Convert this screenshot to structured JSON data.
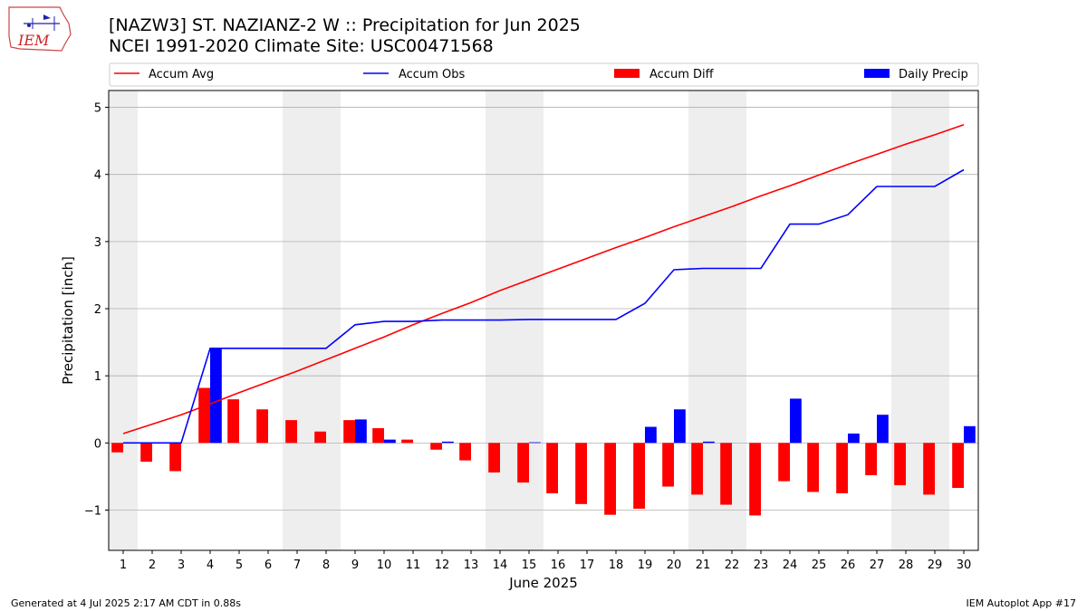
{
  "header": {
    "logo_text": "IEM",
    "title_line1": "[NAZW3] ST. NAZIANZ-2 W :: Precipitation for Jun 2025",
    "title_line2": "NCEI 1991-2020 Climate Site: USC00471568"
  },
  "footer": {
    "generated": "Generated at 4 Jul 2025 2:17 AM CDT in 0.88s",
    "app": "IEM Autoplot App #17"
  },
  "colors": {
    "accum_avg": "#ff0000",
    "accum_obs": "#0000ff",
    "accum_diff": "#ff0000",
    "daily_precip": "#0000ff",
    "weekend_shade": "#eeeeee",
    "grid": "#b0b0b0"
  },
  "chart_data": {
    "type": "bar",
    "xlabel": "June 2025",
    "ylabel": "Precipitation [inch]",
    "ylim": [
      -1.6,
      5.25
    ],
    "xlim": [
      0.5,
      30.5
    ],
    "yticks": [
      -1,
      0,
      1,
      2,
      3,
      4,
      5
    ],
    "ytick_labels": [
      "−1",
      "0",
      "1",
      "2",
      "3",
      "4",
      "5"
    ],
    "grid": "horizontal",
    "legend_position": "top",
    "legend": [
      "Accum Avg",
      "Accum Obs",
      "Accum Diff",
      "Daily Precip"
    ],
    "weekend_days": [
      1,
      7,
      8,
      14,
      15,
      21,
      22,
      28,
      29
    ],
    "x": [
      1,
      2,
      3,
      4,
      5,
      6,
      7,
      8,
      9,
      10,
      11,
      12,
      13,
      14,
      15,
      16,
      17,
      18,
      19,
      20,
      21,
      22,
      23,
      24,
      25,
      26,
      27,
      28,
      29,
      30
    ],
    "series": [
      {
        "name": "Accum Avg",
        "kind": "line",
        "values": [
          0.14,
          0.28,
          0.42,
          0.58,
          0.75,
          0.91,
          1.07,
          1.24,
          1.41,
          1.58,
          1.76,
          1.93,
          2.09,
          2.27,
          2.43,
          2.59,
          2.75,
          2.91,
          3.06,
          3.22,
          3.37,
          3.52,
          3.68,
          3.83,
          3.99,
          4.15,
          4.3,
          4.45,
          4.59,
          4.74
        ]
      },
      {
        "name": "Accum Obs",
        "kind": "line",
        "values": [
          0.0,
          0.0,
          0.0,
          1.41,
          1.41,
          1.41,
          1.41,
          1.41,
          1.76,
          1.81,
          1.81,
          1.83,
          1.83,
          1.83,
          1.84,
          1.84,
          1.84,
          1.84,
          2.08,
          2.58,
          2.6,
          2.6,
          2.6,
          3.26,
          3.26,
          3.4,
          3.82,
          3.82,
          3.82,
          4.07
        ]
      },
      {
        "name": "Accum Diff",
        "kind": "bar",
        "values": [
          -0.14,
          -0.28,
          -0.42,
          0.82,
          0.65,
          0.5,
          0.34,
          0.17,
          0.34,
          0.22,
          0.05,
          -0.1,
          -0.26,
          -0.44,
          -0.59,
          -0.75,
          -0.91,
          -1.07,
          -0.98,
          -0.65,
          -0.77,
          -0.92,
          -1.08,
          -0.57,
          -0.73,
          -0.75,
          -0.48,
          -0.63,
          -0.77,
          -0.67
        ]
      },
      {
        "name": "Daily Precip",
        "kind": "bar",
        "values": [
          0,
          0,
          0,
          1.41,
          0,
          0,
          0,
          0,
          0.35,
          0.05,
          0,
          0.02,
          0,
          0,
          0.01,
          0,
          0,
          0,
          0.24,
          0.5,
          0.02,
          0,
          0,
          0.66,
          0,
          0.14,
          0.42,
          0,
          0,
          0.25
        ]
      }
    ]
  }
}
